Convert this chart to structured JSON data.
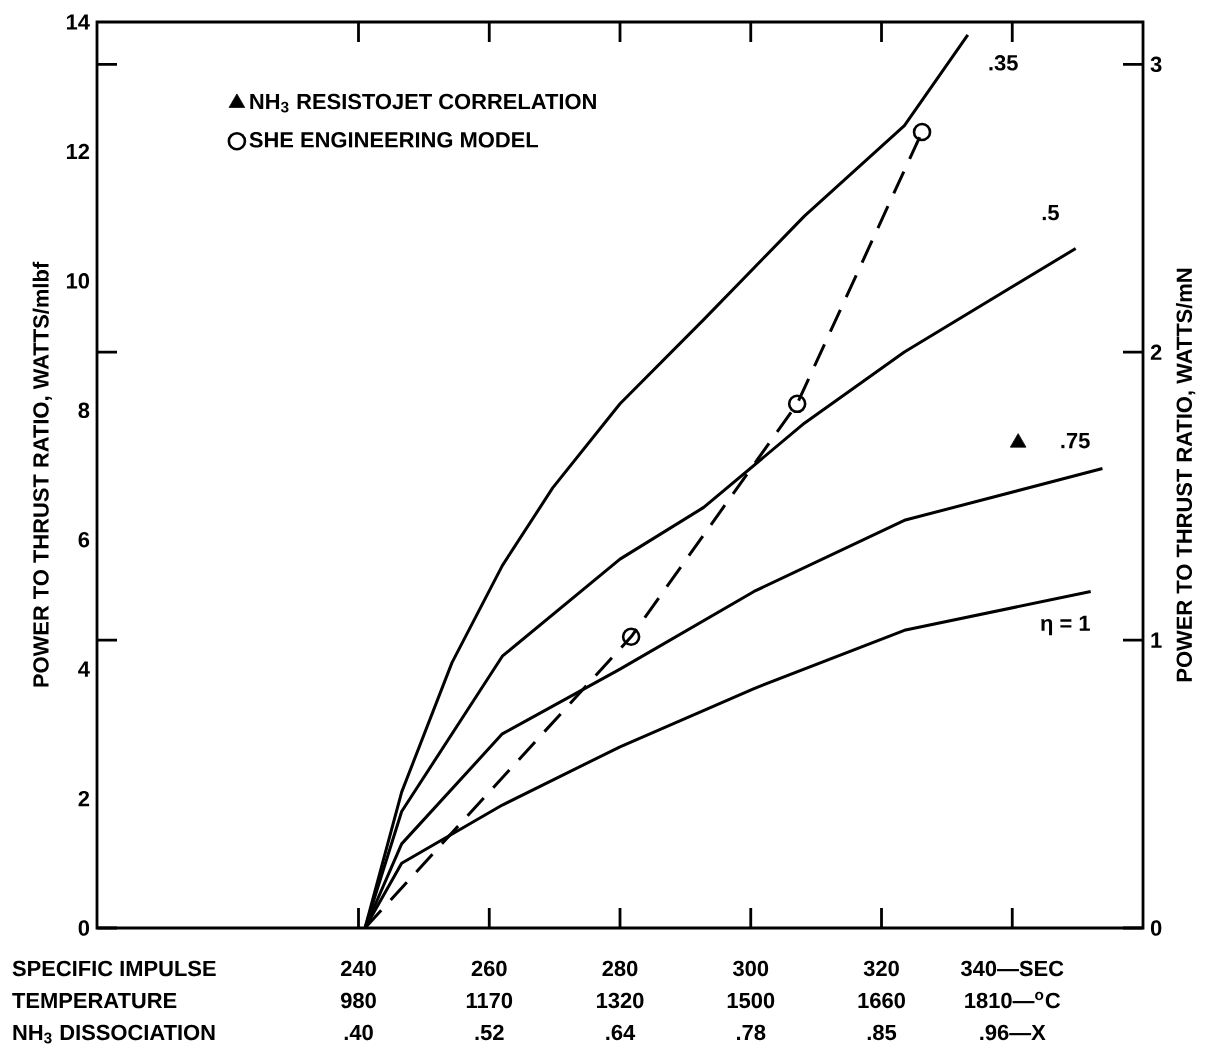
{
  "chart_data": {
    "type": "line",
    "xlabel": "SPECIFIC IMPULSE",
    "annotations": [
      "TEMPERATURE",
      "980",
      "1170",
      "1320",
      "1500",
      "1660",
      "1810—$^{o}$C",
      "NH$_{3}$ DISSOCIATION",
      ".40",
      ".52",
      ".64",
      ".78",
      ".85",
      ".96—X"
    ],
    "ylabel": "POWER TO THRUST RATIO,  WATTS/mlbf",
    "y2label": "POWER TO THRUST RATIO,  WATTS/mN",
    "xlim": [
      200,
      360
    ],
    "ylim": [
      0,
      14
    ],
    "y2lim": [
      0,
      3.147
    ],
    "xticks": [
      240,
      260,
      280,
      300,
      320,
      {
        "value": 340,
        "label": "340—SEC"
      }
    ],
    "yticks": [
      0,
      2,
      4,
      6,
      8,
      10,
      12,
      14
    ],
    "y2ticks": [
      0,
      1,
      2,
      3
    ],
    "legend": "top left",
    "series": [
      {
        "name": ".35",
        "color": "#000000",
        "marker": "none",
        "line_style": "solid",
        "x": [
          241,
          246.6,
          254.3,
          262,
          269.7,
          280,
          292.8,
          308.2,
          323.5,
          333.2
        ],
        "values": [
          0,
          2.1,
          4.1,
          5.6,
          6.8,
          8.1,
          9.4,
          11.0,
          12.4,
          13.8
        ]
      },
      {
        "name": ".5",
        "color": "#000000",
        "marker": "none",
        "line_style": "solid",
        "x": [
          241,
          246.6,
          262,
          280,
          292.8,
          308.2,
          323.5,
          349.7
        ],
        "values": [
          0,
          1.8,
          4.2,
          5.7,
          6.5,
          7.8,
          8.9,
          10.5
        ]
      },
      {
        "name": ".75",
        "color": "#000000",
        "marker": "none",
        "line_style": "solid",
        "x": [
          241,
          246.6,
          262,
          280,
          300.5,
          323.5,
          353.8
        ],
        "values": [
          0,
          1.3,
          3.0,
          4.0,
          5.2,
          6.3,
          7.1
        ]
      },
      {
        "name": "η = 1",
        "color": "#000000",
        "marker": "none",
        "line_style": "solid",
        "x": [
          241,
          246.6,
          262,
          280,
          300.5,
          323.5,
          352
        ],
        "values": [
          0,
          1.0,
          1.9,
          2.8,
          3.7,
          4.6,
          5.2
        ]
      },
      {
        "color": "#000000",
        "marker": "none",
        "line_style": "dashed",
        "x": [
          241,
          281.7,
          307.1,
          326.2
        ],
        "values": [
          0,
          4.5,
          8.1,
          12.3
        ]
      },
      {
        "name": "NH$_{3}$ RESISTOJET CORRELATION",
        "type": "scatter",
        "color": "#000000",
        "marker": "triangle",
        "x": [
          340.9
        ],
        "values": [
          7.5
        ]
      },
      {
        "name": "SHE ENGINEERING MODEL",
        "type": "scatter",
        "color": "#000000",
        "marker": "circle",
        "x": [
          281.7,
          307.1,
          326.2
        ],
        "values": [
          4.5,
          8.1,
          12.3
        ]
      }
    ]
  }
}
